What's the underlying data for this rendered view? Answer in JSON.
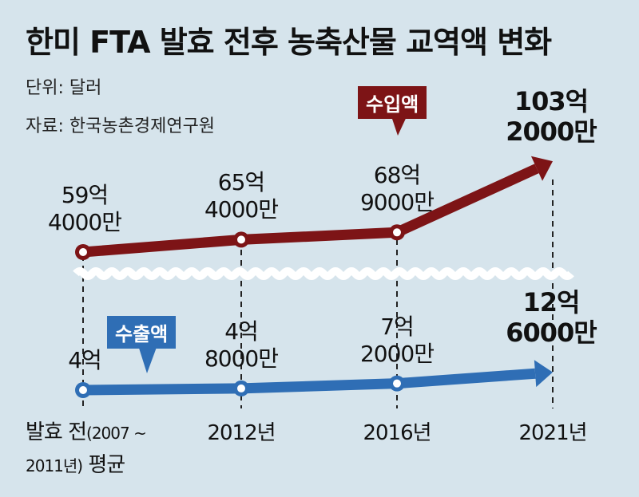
{
  "title": "한미 FTA 발효 전후 농축산물 교역액 변화",
  "unit": "단위: 달러",
  "source": "자료: 한국농촌경제연구원",
  "chart_data": {
    "type": "line",
    "title": "한미 FTA 발효 전후 농축산물 교역액 변화",
    "categories": [
      "발효 전(2007~2011년) 평균",
      "2012년",
      "2016년",
      "2021년"
    ],
    "category_parts": {
      "first_a": "발효 전",
      "first_b": "(2007 ~",
      "first_c": "2011년)",
      "first_d": "평균"
    },
    "unit": "억 달러",
    "series": [
      {
        "name": "수입액",
        "color": "#7d1416",
        "values": [
          59.4,
          65.4,
          68.9,
          103.2
        ],
        "labels": [
          [
            "59억",
            "4000만"
          ],
          [
            "65억",
            "4000만"
          ],
          [
            "68억",
            "9000만"
          ],
          [
            "103억",
            "2000만"
          ]
        ]
      },
      {
        "name": "수출액",
        "color": "#2f6eb5",
        "values": [
          4.0,
          4.8,
          7.2,
          12.6
        ],
        "labels": [
          [
            "4억",
            ""
          ],
          [
            "4억",
            "8000만"
          ],
          [
            "7억",
            "2000만"
          ],
          [
            "12억",
            "6000만"
          ]
        ]
      }
    ],
    "axis_break": true
  }
}
